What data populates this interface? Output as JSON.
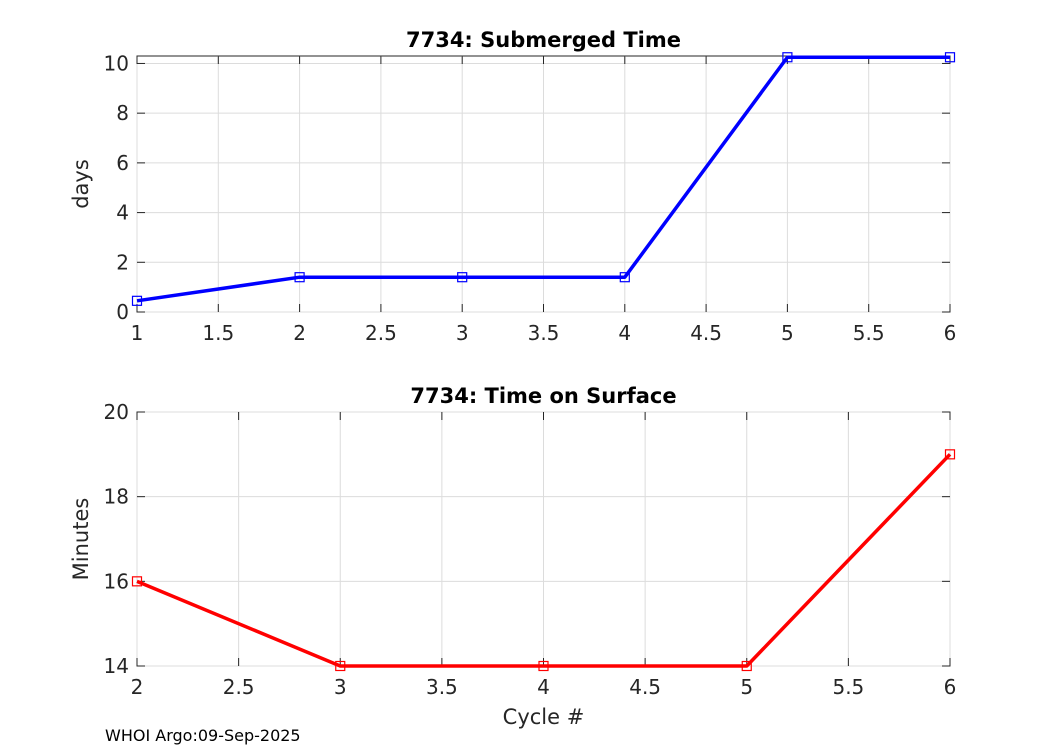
{
  "chart_data": [
    {
      "type": "line",
      "title": "7734: Submerged Time",
      "xlabel": "",
      "ylabel": "days",
      "xlim": [
        1,
        6
      ],
      "ylim": [
        0,
        10.3
      ],
      "xticks": [
        1,
        1.5,
        2,
        2.5,
        3,
        3.5,
        4,
        4.5,
        5,
        5.5,
        6
      ],
      "yticks": [
        0,
        2,
        4,
        6,
        8,
        10
      ],
      "grid": true,
      "marker": "square",
      "color": "#0000ff",
      "series": [
        {
          "x": [
            1,
            2,
            3,
            4,
            5,
            6
          ],
          "values": [
            0.45,
            1.4,
            1.4,
            1.4,
            10.25,
            10.25
          ]
        }
      ]
    },
    {
      "type": "line",
      "title": "7734: Time on Surface",
      "xlabel": "Cycle #",
      "ylabel": "Minutes",
      "xlim": [
        2,
        6
      ],
      "ylim": [
        14,
        20
      ],
      "xticks": [
        2,
        2.5,
        3,
        3.5,
        4,
        4.5,
        5,
        5.5,
        6
      ],
      "yticks": [
        14,
        16,
        18,
        20
      ],
      "grid": true,
      "marker": "square",
      "color": "#ff0000",
      "series": [
        {
          "x": [
            2,
            3,
            4,
            5,
            6
          ],
          "values": [
            16,
            14,
            14,
            14,
            19
          ]
        }
      ]
    }
  ],
  "footer": "WHOI Argo:09-Sep-2025"
}
